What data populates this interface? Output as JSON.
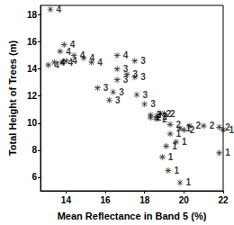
{
  "chart_data": {
    "type": "scatter",
    "x_label": "Mean Reflectance in Band 5 (%)",
    "y_label": "Total Height of Trees (m)",
    "xlim": [
      12.7,
      22
    ],
    "xticks": [
      14,
      16,
      18,
      20,
      22
    ],
    "ylim": [
      5,
      18.7
    ],
    "yticks": [
      6,
      8,
      10,
      12,
      14,
      16,
      18
    ],
    "grid": false,
    "marker": "asterisk",
    "series": [
      {
        "name": "4",
        "color": "#000000",
        "values": [
          [
            13.2,
            18.4
          ],
          [
            13.9,
            15.8
          ],
          [
            13.7,
            15.3
          ],
          [
            13.4,
            14.5
          ],
          [
            13.1,
            14.3
          ],
          [
            13.8,
            14.5
          ],
          [
            14.0,
            14.6
          ],
          [
            14.9,
            14.8
          ],
          [
            15.3,
            14.5
          ],
          [
            16.6,
            15.0
          ],
          [
            14.4,
            15.0
          ]
        ]
      },
      {
        "name": "3",
        "color": "#000000",
        "values": [
          [
            16.6,
            14.0
          ],
          [
            15.6,
            12.6
          ],
          [
            16.2,
            11.7
          ],
          [
            16.6,
            13.2
          ],
          [
            17.1,
            13.6
          ],
          [
            17.5,
            14.6
          ],
          [
            17.5,
            13.4
          ],
          [
            17.6,
            12.1
          ],
          [
            18.0,
            11.4
          ],
          [
            16.4,
            12.3
          ]
        ]
      },
      {
        "name": "2",
        "color": "#000000",
        "values": [
          [
            18.3,
            10.6
          ],
          [
            18.6,
            10.5
          ],
          [
            18.8,
            10.7
          ],
          [
            18.6,
            10.3
          ],
          [
            18.3,
            10.4
          ],
          [
            19.0,
            10.7
          ],
          [
            19.3,
            9.9
          ],
          [
            20.3,
            9.8
          ],
          [
            21.0,
            9.8
          ],
          [
            21.8,
            9.7
          ],
          [
            20.0,
            9.5
          ]
        ]
      },
      {
        "name": "1",
        "color": "#000000",
        "values": [
          [
            19.3,
            9.2
          ],
          [
            19.6,
            8.6
          ],
          [
            19.8,
            9.6
          ],
          [
            19.1,
            8.3
          ],
          [
            18.9,
            7.5
          ],
          [
            19.2,
            6.5
          ],
          [
            19.8,
            5.6
          ],
          [
            21.8,
            7.8
          ],
          [
            22.0,
            9.5
          ]
        ]
      }
    ]
  }
}
